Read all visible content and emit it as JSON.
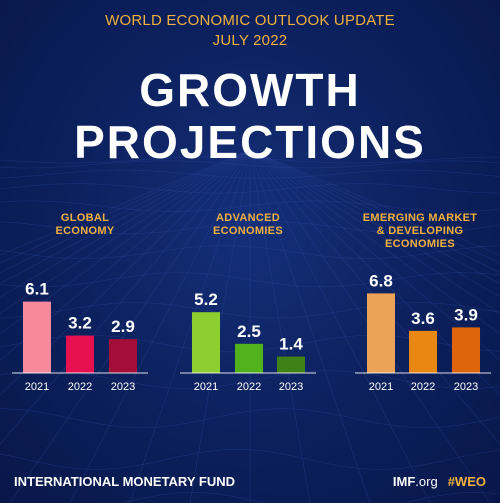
{
  "header": {
    "line1": "WORLD ECONOMIC OUTLOOK UPDATE",
    "line2": "JULY 2022",
    "title_line1": "GROWTH",
    "title_line2": "PROJECTIONS"
  },
  "chart_data": [
    {
      "type": "bar",
      "title": "GLOBAL ECONOMY",
      "categories": [
        "2021",
        "2022",
        "2023"
      ],
      "values": [
        6.1,
        3.2,
        2.9
      ],
      "colors": [
        "#f7899c",
        "#e8114f",
        "#a50d39"
      ]
    },
    {
      "type": "bar",
      "title": "ADVANCED ECONOMIES",
      "categories": [
        "2021",
        "2022",
        "2023"
      ],
      "values": [
        5.2,
        2.5,
        1.4
      ],
      "colors": [
        "#8ccf2e",
        "#52b21c",
        "#3e8216"
      ]
    },
    {
      "type": "bar",
      "title": "EMERGING MARKET & DEVELOPING ECONOMIES",
      "categories": [
        "2021",
        "2022",
        "2023"
      ],
      "values": [
        6.8,
        3.6,
        3.9
      ],
      "colors": [
        "#eba357",
        "#e88712",
        "#df650d"
      ]
    }
  ],
  "footer": {
    "left": "INTERNATIONAL MONETARY FUND",
    "imf": "IMF",
    "org": ".org",
    "hashtag": "#WEO"
  },
  "colors": {
    "background": "#0b1d52",
    "accent": "#f1b13c"
  }
}
